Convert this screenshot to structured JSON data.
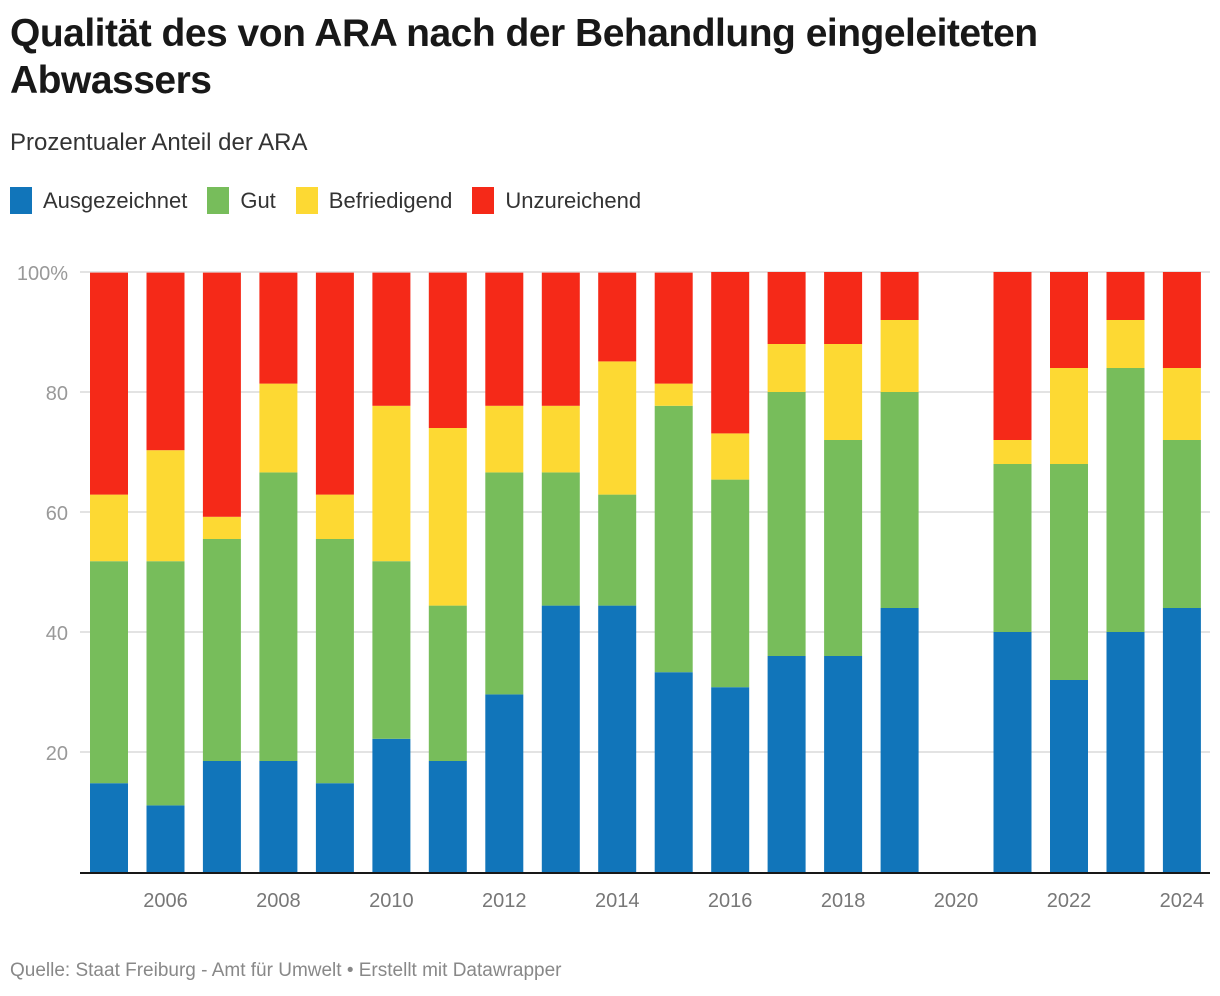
{
  "header": {
    "title": "Qualität des von ARA nach der Behandlung eingeleiteten Abwassers",
    "subtitle": "Prozentualer Anteil der ARA"
  },
  "footer": {
    "text": "Quelle: Staat Freiburg - Amt für Umwelt • Erstellt mit Datawrapper"
  },
  "chart_data": {
    "type": "bar",
    "stacked": true,
    "title": "Qualität des von ARA nach der Behandlung eingeleiteten Abwassers",
    "subtitle": "Prozentualer Anteil der ARA",
    "xlabel": "",
    "ylabel": "",
    "ylim": [
      0,
      100
    ],
    "yticks": [
      20,
      40,
      60,
      80,
      100
    ],
    "ytick_labels": [
      "20",
      "40",
      "60",
      "80",
      "100%"
    ],
    "grid": true,
    "legend_position": "top-left",
    "categories": [
      "2005",
      "2006",
      "2007",
      "2008",
      "2009",
      "2010",
      "2011",
      "2012",
      "2013",
      "2014",
      "2015",
      "2016",
      "2017",
      "2018",
      "2019",
      "2020",
      "2021",
      "2022",
      "2023",
      "2024"
    ],
    "xtick_labels": [
      "2006",
      "2008",
      "2010",
      "2012",
      "2014",
      "2016",
      "2018",
      "2020",
      "2022",
      "2024"
    ],
    "series": [
      {
        "name": "Ausgezeichnet",
        "color": "#1175ba",
        "values": [
          14.8,
          11.1,
          18.5,
          18.5,
          14.8,
          22.2,
          18.5,
          29.6,
          44.4,
          44.4,
          33.3,
          30.8,
          36,
          36,
          44,
          null,
          40,
          32,
          40,
          44
        ]
      },
      {
        "name": "Gut",
        "color": "#77bd5b",
        "values": [
          37.0,
          40.7,
          37.0,
          48.1,
          40.7,
          29.6,
          25.9,
          37.0,
          22.2,
          18.5,
          44.4,
          34.6,
          44,
          36,
          36,
          null,
          28,
          36,
          44,
          28
        ]
      },
      {
        "name": "Befriedigend",
        "color": "#fdd933",
        "values": [
          11.1,
          18.5,
          3.7,
          14.8,
          7.4,
          25.9,
          29.6,
          11.1,
          11.1,
          22.2,
          3.7,
          7.7,
          8,
          16,
          12,
          null,
          4,
          16,
          8,
          12
        ]
      },
      {
        "name": "Unzureichend",
        "color": "#f52918",
        "values": [
          37.0,
          29.6,
          40.7,
          18.5,
          37.0,
          22.2,
          25.9,
          22.2,
          22.2,
          14.8,
          18.5,
          26.9,
          12,
          12,
          8,
          null,
          28,
          16,
          8,
          16
        ]
      }
    ]
  }
}
